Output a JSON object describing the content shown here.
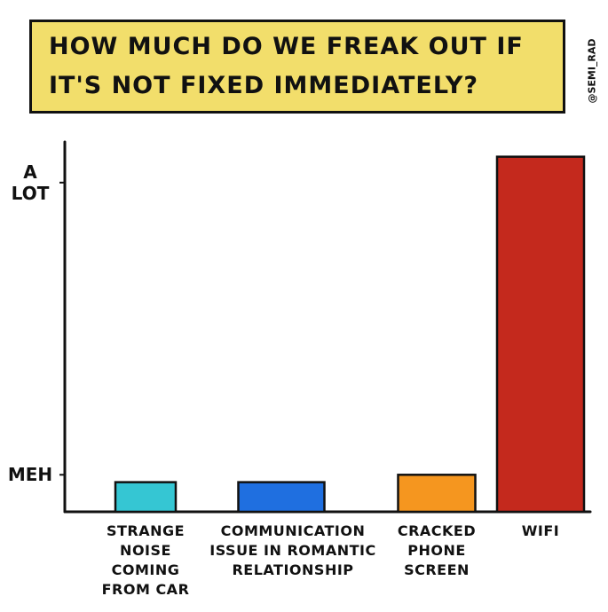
{
  "chart_data": {
    "type": "bar",
    "title": "HOW MUCH DO WE FREAK OUT IF IT'S NOT FIXED IMMEDIATELY?",
    "credit": "@SEMI_RAD",
    "categories": [
      "STRANGE NOISE COMING FROM CAR",
      "COMMUNICATION ISSUE IN ROMANTIC RELATIONSHIP",
      "CRACKED PHONE SCREEN",
      "WIFI"
    ],
    "values": [
      8,
      8,
      10,
      96
    ],
    "colors": [
      "#35c6d3",
      "#1f6fe0",
      "#f5961f",
      "#c4291d"
    ],
    "ylim": [
      0,
      100
    ],
    "yticks": [
      {
        "value": 10,
        "label": "MEH"
      },
      {
        "value": 89,
        "label": "A LOT"
      }
    ]
  }
}
